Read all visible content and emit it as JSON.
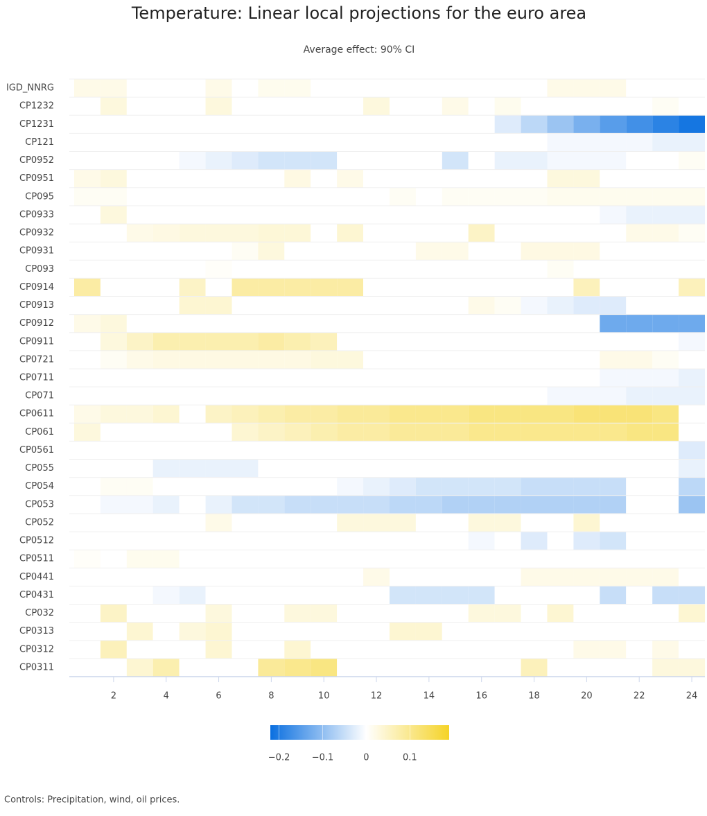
{
  "chart_data": {
    "type": "heatmap",
    "title": "Temperature: Linear local projections for the euro area",
    "subtitle": "Average effect: 90% CI",
    "caption": "Controls: Precipitation, wind, oil prices.",
    "categories": [
      "IGD_NNRG",
      "CP1232",
      "CP1231",
      "CP121",
      "CP0952",
      "CP0951",
      "CP095",
      "CP0933",
      "CP0932",
      "CP0931",
      "CP093",
      "CP0914",
      "CP0913",
      "CP0912",
      "CP0911",
      "CP0721",
      "CP0711",
      "CP071",
      "CP0611",
      "CP061",
      "CP0561",
      "CP055",
      "CP054",
      "CP053",
      "CP052",
      "CP0512",
      "CP0511",
      "CP0441",
      "CP0431",
      "CP032",
      "CP0313",
      "CP0312",
      "CP0311"
    ],
    "x": [
      1,
      2,
      3,
      4,
      5,
      6,
      7,
      8,
      9,
      10,
      11,
      12,
      13,
      14,
      15,
      16,
      17,
      18,
      19,
      20,
      21,
      22,
      23,
      24
    ],
    "xlim": [
      0.5,
      24.5
    ],
    "xticks": [
      2,
      4,
      6,
      8,
      10,
      12,
      14,
      16,
      18,
      20,
      22,
      24
    ],
    "values": [
      [
        0.02,
        0.02,
        0,
        0,
        0,
        0.02,
        0,
        0.015,
        0.015,
        0,
        0,
        0,
        0,
        0,
        0,
        0,
        0,
        0,
        0.02,
        0.02,
        0.02,
        0,
        0,
        0
      ],
      [
        0,
        0.03,
        0,
        0,
        0,
        0.03,
        0,
        0,
        0,
        0,
        0,
        0.03,
        0,
        0,
        0.02,
        0,
        0.015,
        0,
        0,
        0,
        0,
        0,
        0.01,
        0
      ],
      [
        0,
        0,
        0,
        0,
        0,
        0,
        0,
        0,
        0,
        0,
        0,
        0,
        0,
        0,
        0,
        0,
        -0.03,
        -0.06,
        -0.09,
        -0.12,
        -0.15,
        -0.17,
        -0.19,
        -0.21
      ],
      [
        0,
        0,
        0,
        0,
        0,
        0,
        0,
        0,
        0,
        0,
        0,
        0,
        0,
        0,
        0,
        0,
        0,
        0,
        -0.01,
        -0.01,
        -0.01,
        -0.01,
        -0.02,
        -0.02
      ],
      [
        0,
        0,
        0,
        0,
        -0.01,
        -0.02,
        -0.03,
        -0.04,
        -0.04,
        -0.04,
        0,
        0,
        0,
        0,
        -0.04,
        0,
        -0.02,
        -0.02,
        -0.01,
        -0.01,
        -0.01,
        0,
        0,
        0.01
      ],
      [
        0.02,
        0.03,
        0,
        0,
        0,
        0,
        0,
        0,
        0.025,
        0,
        0.02,
        0,
        0,
        0,
        0,
        0,
        0,
        0,
        0.03,
        0.03,
        0,
        0,
        0,
        0
      ],
      [
        0.01,
        0.01,
        0,
        0,
        0,
        0,
        0,
        0,
        0,
        0,
        0,
        0,
        0.01,
        0,
        0.01,
        0.01,
        0.01,
        0.01,
        0.015,
        0.015,
        0.015,
        0.015,
        0.015,
        0.015
      ],
      [
        0,
        0.03,
        0,
        0,
        0,
        0,
        0,
        0,
        0,
        0,
        0,
        0,
        0,
        0,
        0,
        0,
        0,
        0,
        0,
        0,
        -0.01,
        -0.02,
        -0.02,
        -0.02
      ],
      [
        0,
        0,
        0.02,
        0.025,
        0.03,
        0.03,
        0.03,
        0.035,
        0.035,
        0,
        0.04,
        0,
        0,
        0,
        0,
        0.05,
        0,
        0,
        0,
        0,
        0,
        0.02,
        0.02,
        0.01
      ],
      [
        0,
        0,
        0,
        0,
        0,
        0,
        0.01,
        0.03,
        0,
        0,
        0,
        0,
        0,
        0.02,
        0.02,
        0,
        0,
        0.025,
        0.025,
        0.025,
        0,
        0,
        0,
        0
      ],
      [
        0,
        0,
        0,
        0,
        0,
        0.005,
        0,
        0,
        0,
        0,
        0,
        0,
        0,
        0,
        0,
        0,
        0,
        0,
        0.01,
        0,
        0,
        0,
        0,
        0
      ],
      [
        0.08,
        0,
        0,
        0,
        0.05,
        0,
        0.08,
        0.08,
        0.08,
        0.08,
        0.08,
        0,
        0,
        0,
        0,
        0,
        0,
        0,
        0,
        0.06,
        0,
        0,
        0,
        0.06
      ],
      [
        0,
        0,
        0,
        0,
        0.04,
        0.04,
        0,
        0,
        0,
        0,
        0,
        0,
        0,
        0,
        0,
        0.02,
        0.01,
        -0.01,
        -0.02,
        -0.03,
        -0.03,
        0,
        0,
        0
      ],
      [
        0.02,
        0.03,
        0,
        0,
        0,
        0,
        0,
        0,
        0,
        0,
        0,
        0,
        0,
        0,
        0,
        0,
        0,
        0,
        0,
        0,
        -0.13,
        -0.13,
        -0.13,
        -0.13
      ],
      [
        0,
        0.03,
        0.05,
        0.07,
        0.07,
        0.07,
        0.07,
        0.08,
        0.07,
        0.06,
        0,
        0,
        0,
        0,
        0,
        0,
        0,
        0,
        0,
        0,
        0,
        0,
        0,
        -0.01
      ],
      [
        0,
        0.01,
        0.02,
        0.025,
        0.025,
        0.025,
        0.025,
        0.025,
        0.025,
        0.03,
        0.03,
        0,
        0,
        0,
        0,
        0,
        0,
        0,
        0,
        0,
        0.02,
        0.02,
        0.01,
        0
      ],
      [
        0,
        0,
        0,
        0,
        0,
        0,
        0,
        0,
        0,
        0,
        0,
        0,
        0,
        0,
        0,
        0,
        0,
        0,
        0,
        0,
        -0.01,
        -0.01,
        -0.01,
        -0.02
      ],
      [
        0,
        0,
        0,
        0,
        0,
        0,
        0,
        0,
        0,
        0,
        0,
        0,
        0,
        0,
        0,
        0,
        0,
        0,
        -0.01,
        -0.01,
        -0.01,
        -0.02,
        -0.02,
        -0.02
      ],
      [
        0.02,
        0.03,
        0.03,
        0.04,
        0,
        0.05,
        0.06,
        0.07,
        0.08,
        0.08,
        0.09,
        0.09,
        0.1,
        0.1,
        0.1,
        0.11,
        0.11,
        0.11,
        0.11,
        0.12,
        0.12,
        0.12,
        0.11,
        0
      ],
      [
        0.03,
        0,
        0,
        0,
        0,
        0,
        0.04,
        0.05,
        0.06,
        0.07,
        0.08,
        0.08,
        0.09,
        0.09,
        0.09,
        0.1,
        0.1,
        0.1,
        0.1,
        0.1,
        0.1,
        0.11,
        0.11,
        0
      ],
      [
        0,
        0,
        0,
        0,
        0,
        0,
        0,
        0,
        0,
        0,
        0,
        0,
        0,
        0,
        0,
        0,
        0,
        0,
        0,
        0,
        0,
        0,
        0,
        -0.03
      ],
      [
        0,
        0,
        0,
        -0.02,
        -0.02,
        -0.02,
        -0.02,
        0,
        0,
        0,
        0,
        0,
        0,
        0,
        0,
        0,
        0,
        0,
        0,
        0,
        0,
        0,
        0,
        -0.02
      ],
      [
        0,
        0.01,
        0.01,
        0,
        0,
        0,
        0,
        0,
        0,
        0,
        -0.01,
        -0.02,
        -0.03,
        -0.04,
        -0.04,
        -0.04,
        -0.04,
        -0.05,
        -0.05,
        -0.05,
        -0.05,
        0,
        0,
        -0.06
      ],
      [
        0,
        -0.01,
        -0.01,
        -0.02,
        0,
        -0.02,
        -0.04,
        -0.04,
        -0.05,
        -0.05,
        -0.05,
        -0.05,
        -0.06,
        -0.06,
        -0.07,
        -0.07,
        -0.07,
        -0.07,
        -0.07,
        -0.07,
        -0.07,
        0,
        0,
        -0.09
      ],
      [
        0,
        0,
        0,
        0,
        0,
        0.02,
        0,
        0,
        0,
        0,
        0.03,
        0.03,
        0.03,
        0,
        0,
        0.03,
        0.03,
        0,
        0,
        0.04,
        0,
        0,
        0,
        0
      ],
      [
        0,
        0,
        0,
        0,
        0,
        0,
        0,
        0,
        0,
        0,
        0,
        0,
        0,
        0,
        0,
        -0.01,
        0,
        -0.03,
        0,
        -0.03,
        -0.04,
        0,
        0,
        0
      ],
      [
        0.005,
        0,
        0.015,
        0.015,
        0,
        0,
        0,
        0,
        0,
        0,
        0,
        0,
        0,
        0,
        0,
        0,
        0,
        0,
        0,
        0,
        0,
        0,
        0,
        0
      ],
      [
        0,
        0,
        0,
        0,
        0,
        0,
        0,
        0,
        0,
        0,
        0,
        0.02,
        0,
        0,
        0,
        0,
        0,
        0.02,
        0.02,
        0.02,
        0.02,
        0.02,
        0.02,
        0
      ],
      [
        0,
        0,
        0,
        -0.01,
        -0.02,
        0,
        0,
        0,
        0,
        0,
        0,
        0,
        -0.04,
        -0.04,
        -0.04,
        -0.04,
        0,
        0,
        0,
        0,
        -0.05,
        0,
        -0.05,
        -0.05
      ],
      [
        0,
        0.05,
        0,
        0,
        0,
        0.03,
        0,
        0,
        0.03,
        0.03,
        0,
        0,
        0,
        0,
        0,
        0.03,
        0.03,
        0,
        0.04,
        0,
        0,
        0,
        0,
        0.04
      ],
      [
        0,
        0,
        0.04,
        0,
        0.03,
        0.04,
        0,
        0,
        0,
        0,
        0,
        0,
        0.04,
        0.04,
        0,
        0,
        0,
        0,
        0,
        0,
        0,
        0,
        0,
        0
      ],
      [
        0,
        0.06,
        0,
        0,
        0,
        0.04,
        0,
        0,
        0.04,
        0,
        0,
        0,
        0,
        0,
        0,
        0,
        0,
        0,
        0,
        0.02,
        0.02,
        0,
        0.02,
        0
      ],
      [
        0,
        0,
        0.04,
        0.07,
        0,
        0,
        0,
        0.09,
        0.1,
        0.11,
        0,
        0,
        0,
        0,
        0,
        0,
        0,
        0.06,
        0,
        0,
        0,
        0,
        0.03,
        0.03
      ]
    ],
    "colorscale": {
      "lim": [
        -0.22,
        0.19
      ],
      "colors": [
        "#0a6fe0",
        "#ffffff",
        "#f5d327"
      ],
      "ticks": [
        {
          "value": -0.2,
          "label": "−0.2"
        },
        {
          "value": -0.1,
          "label": "−0.1"
        },
        0,
        0.1
      ]
    }
  }
}
